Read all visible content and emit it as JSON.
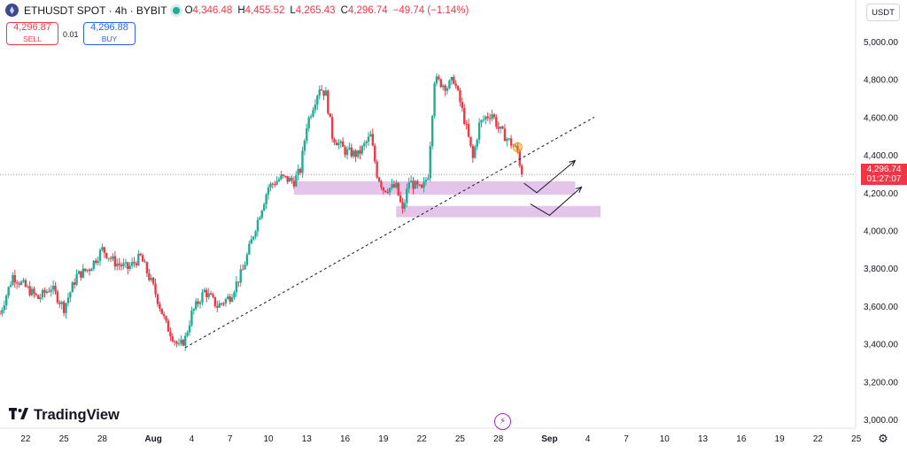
{
  "header": {
    "symbol": "ETHUSDT SPOT · 4h · BYBIT",
    "o_label": "O",
    "o": "4,346.48",
    "h_label": "H",
    "h": "4,455.52",
    "l_label": "L",
    "l": "4,265.43",
    "c_label": "C",
    "c": "4,296.74",
    "change": "−49.74 (−1.14%)"
  },
  "trade": {
    "sell_price": "4,296.87",
    "sell_label": "SELL",
    "spread": "0.01",
    "buy_price": "4,296.88",
    "buy_label": "BUY"
  },
  "currency": "USDT",
  "price_tag": {
    "price": "4,296.74",
    "countdown": "01:27:07"
  },
  "branding": {
    "logo_text": "TradingView"
  },
  "colors": {
    "up": "#22ab94",
    "down": "#f23645",
    "zone": "#ce93d8",
    "text": "#131722",
    "axis_text": "#131722",
    "dotted": "#9598a1",
    "buy": "#2962ff"
  },
  "chart_data": {
    "type": "candlestick",
    "symbol": "ETHUSDT",
    "timeframe": "4h",
    "exchange": "BYBIT",
    "ylim": [
      2950,
      5100
    ],
    "y_ticks": [
      3000,
      3200,
      3400,
      3600,
      3800,
      4000,
      4200,
      4400,
      4600,
      4800,
      5000
    ],
    "y_tick_labels": [
      "3,000.00",
      "3,200.00",
      "3,400.00",
      "3,600.00",
      "3,800.00",
      "4,000.00",
      "4,200.00",
      "4,400.00",
      "4,600.00",
      "4,800.00",
      "5,000.00"
    ],
    "x_start": "2025-07-20",
    "x_end": "2025-09-28",
    "x_ticks": [
      {
        "date": "2025-07-22",
        "label": "22"
      },
      {
        "date": "2025-07-25",
        "label": "25"
      },
      {
        "date": "2025-07-28",
        "label": "28"
      },
      {
        "date": "2025-08-01",
        "label": "Aug"
      },
      {
        "date": "2025-08-04",
        "label": "4"
      },
      {
        "date": "2025-08-07",
        "label": "7"
      },
      {
        "date": "2025-08-10",
        "label": "10"
      },
      {
        "date": "2025-08-13",
        "label": "13"
      },
      {
        "date": "2025-08-16",
        "label": "16"
      },
      {
        "date": "2025-08-19",
        "label": "19"
      },
      {
        "date": "2025-08-22",
        "label": "22"
      },
      {
        "date": "2025-08-25",
        "label": "25"
      },
      {
        "date": "2025-08-28",
        "label": "28"
      },
      {
        "date": "2025-09-01",
        "label": "Sep"
      },
      {
        "date": "2025-09-04",
        "label": "4"
      },
      {
        "date": "2025-09-07",
        "label": "7"
      },
      {
        "date": "2025-09-10",
        "label": "10"
      },
      {
        "date": "2025-09-13",
        "label": "13"
      },
      {
        "date": "2025-09-16",
        "label": "16"
      },
      {
        "date": "2025-09-19",
        "label": "19"
      },
      {
        "date": "2025-09-22",
        "label": "22"
      },
      {
        "date": "2025-09-25",
        "label": "25"
      }
    ],
    "close_path": [
      [
        "2025-07-20T00:00",
        3560
      ],
      [
        "2025-07-21T00:00",
        3760
      ],
      [
        "2025-07-22T00:00",
        3700
      ],
      [
        "2025-07-23T00:00",
        3640
      ],
      [
        "2025-07-24T00:00",
        3700
      ],
      [
        "2025-07-25T00:00",
        3590
      ],
      [
        "2025-07-26T00:00",
        3760
      ],
      [
        "2025-07-27T00:00",
        3800
      ],
      [
        "2025-07-28T00:00",
        3900
      ],
      [
        "2025-07-29T00:00",
        3830
      ],
      [
        "2025-07-30T00:00",
        3800
      ],
      [
        "2025-07-31T00:00",
        3860
      ],
      [
        "2025-08-01T00:00",
        3700
      ],
      [
        "2025-08-02T00:00",
        3500
      ],
      [
        "2025-08-03T00:00",
        3380
      ],
      [
        "2025-08-03T12:00",
        3430
      ],
      [
        "2025-08-04T00:00",
        3560
      ],
      [
        "2025-08-05T00:00",
        3680
      ],
      [
        "2025-08-06T00:00",
        3600
      ],
      [
        "2025-08-07T00:00",
        3650
      ],
      [
        "2025-08-08T00:00",
        3790
      ],
      [
        "2025-08-09T00:00",
        4020
      ],
      [
        "2025-08-10T00:00",
        4230
      ],
      [
        "2025-08-11T00:00",
        4280
      ],
      [
        "2025-08-12T00:00",
        4260
      ],
      [
        "2025-08-12T12:00",
        4320
      ],
      [
        "2025-08-13T00:00",
        4560
      ],
      [
        "2025-08-14T00:00",
        4760
      ],
      [
        "2025-08-14T12:00",
        4720
      ],
      [
        "2025-08-15T00:00",
        4500
      ],
      [
        "2025-08-16T00:00",
        4420
      ],
      [
        "2025-08-17T00:00",
        4400
      ],
      [
        "2025-08-18T00:00",
        4500
      ],
      [
        "2025-08-18T12:00",
        4300
      ],
      [
        "2025-08-19T00:00",
        4220
      ],
      [
        "2025-08-20T00:00",
        4230
      ],
      [
        "2025-08-20T12:00",
        4100
      ],
      [
        "2025-08-21T00:00",
        4260
      ],
      [
        "2025-08-22T00:00",
        4210
      ],
      [
        "2025-08-22T12:00",
        4300
      ],
      [
        "2025-08-23T00:00",
        4800
      ],
      [
        "2025-08-24T00:00",
        4760
      ],
      [
        "2025-08-24T12:00",
        4800
      ],
      [
        "2025-08-25T00:00",
        4680
      ],
      [
        "2025-08-25T12:00",
        4540
      ],
      [
        "2025-08-26T00:00",
        4380
      ],
      [
        "2025-08-26T12:00",
        4560
      ],
      [
        "2025-08-27T00:00",
        4600
      ],
      [
        "2025-08-27T12:00",
        4620
      ],
      [
        "2025-08-28T00:00",
        4540
      ],
      [
        "2025-08-28T12:00",
        4500
      ],
      [
        "2025-08-29T00:00",
        4460
      ],
      [
        "2025-08-29T12:00",
        4420
      ],
      [
        "2025-08-29T20:00",
        4296.74
      ]
    ],
    "last_price": 4296.74,
    "trendline": {
      "from": [
        "2025-08-03T12:00",
        3380
      ],
      "to": [
        "2025-09-04T12:00",
        4600
      ]
    },
    "zones": [
      {
        "from": "2025-08-12T00:00",
        "to": "2025-09-03T00:00",
        "low": 4190,
        "high": 4260
      },
      {
        "from": "2025-08-20T00:00",
        "to": "2025-09-05T00:00",
        "low": 4070,
        "high": 4130
      }
    ],
    "projections": [
      [
        [
          "2025-08-30T00:00",
          4250
        ],
        [
          "2025-08-31T00:00",
          4200
        ],
        [
          "2025-09-03T00:00",
          4370
        ]
      ],
      [
        [
          "2025-08-30T12:00",
          4140
        ],
        [
          "2025-09-01T00:00",
          4080
        ],
        [
          "2025-09-03T12:00",
          4230
        ]
      ]
    ]
  }
}
